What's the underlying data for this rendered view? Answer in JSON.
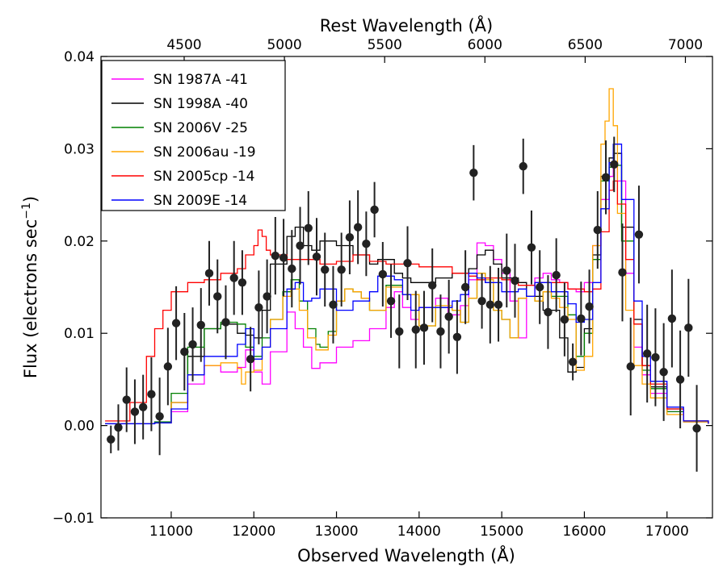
{
  "chart_data": {
    "type": "line",
    "xlabel": "Observed Wavelength (Å)",
    "x2label": "Rest Wavelength (Å)",
    "ylabel": "Flux (electrons sec",
    "ylabel_sup": "−1",
    "ylabel_close": ")",
    "xlim": [
      10150,
      17550
    ],
    "ylim": [
      -0.01,
      0.04
    ],
    "x2lim": [
      4085,
      7135
    ],
    "x_ticks": [
      11000,
      12000,
      13000,
      14000,
      15000,
      16000,
      17000
    ],
    "x_tick_labels": [
      "11000",
      "12000",
      "13000",
      "14000",
      "15000",
      "16000",
      "17000"
    ],
    "x2_ticks": [
      4500,
      5000,
      5500,
      6000,
      6500,
      7000
    ],
    "x2_tick_labels": [
      "4500",
      "5000",
      "5500",
      "6000",
      "6500",
      "7000"
    ],
    "y_ticks": [
      -0.01,
      0.0,
      0.01,
      0.02,
      0.03,
      0.04
    ],
    "y_tick_labels": [
      "−0.01",
      "0.00",
      "0.01",
      "0.02",
      "0.03",
      "0.04"
    ],
    "grid": false,
    "legend_position": "top-left",
    "series": [
      {
        "name": "SN 1987A -41",
        "color": "#ff00ff",
        "x": [
          10200,
          10800,
          11000,
          11200,
          11400,
          11600,
          11800,
          11900,
          12000,
          12100,
          12200,
          12400,
          12500,
          12600,
          12700,
          12800,
          13000,
          13200,
          13400,
          13600,
          13700,
          13800,
          13900,
          14000,
          14200,
          14350,
          14500,
          14600,
          14700,
          14800,
          14900,
          15000,
          15100,
          15200,
          15300,
          15400,
          15500,
          15600,
          15700,
          15800,
          15900,
          16000,
          16100,
          16200,
          16300,
          16350,
          16400,
          16500,
          16600,
          16700,
          16800,
          17000,
          17200,
          17500
        ],
        "y": [
          0.0002,
          0.0003,
          0.0015,
          0.0045,
          0.0065,
          0.0058,
          0.0063,
          0.0082,
          0.0058,
          0.0045,
          0.008,
          0.0123,
          0.0105,
          0.0085,
          0.0062,
          0.0068,
          0.0085,
          0.0092,
          0.0105,
          0.0128,
          0.0145,
          0.0128,
          0.0115,
          0.0128,
          0.0138,
          0.012,
          0.013,
          0.0158,
          0.0198,
          0.0195,
          0.018,
          0.0165,
          0.0135,
          0.0095,
          0.014,
          0.016,
          0.0165,
          0.0158,
          0.0155,
          0.0148,
          0.0145,
          0.0155,
          0.0195,
          0.0245,
          0.027,
          0.028,
          0.0265,
          0.0165,
          0.0085,
          0.0055,
          0.0035,
          0.0015,
          0.0004,
          0.0002
        ]
      },
      {
        "name": "SN 1998A -40",
        "color": "#000000",
        "x": [
          10200,
          10800,
          11000,
          11200,
          11400,
          11600,
          11800,
          11900,
          12000,
          12100,
          12200,
          12400,
          12500,
          12600,
          12700,
          12800,
          13000,
          13200,
          13400,
          13500,
          13700,
          13800,
          13900,
          14000,
          14200,
          14400,
          14600,
          14700,
          14800,
          14900,
          15000,
          15200,
          15300,
          15500,
          15700,
          15800,
          15900,
          16000,
          16100,
          16200,
          16300,
          16350,
          16450,
          16600,
          16700,
          16800,
          17000,
          17200,
          17500
        ],
        "y": [
          0.0002,
          0.0003,
          0.0025,
          0.0075,
          0.0105,
          0.011,
          0.01,
          0.0098,
          0.0095,
          0.0125,
          0.0175,
          0.0205,
          0.0215,
          0.0195,
          0.019,
          0.02,
          0.0195,
          0.0185,
          0.0175,
          0.018,
          0.0165,
          0.016,
          0.0155,
          0.0155,
          0.016,
          0.0165,
          0.017,
          0.0185,
          0.019,
          0.0175,
          0.016,
          0.0155,
          0.014,
          0.0125,
          0.0095,
          0.0058,
          0.0063,
          0.0105,
          0.0185,
          0.027,
          0.029,
          0.0295,
          0.0215,
          0.0115,
          0.0065,
          0.0042,
          0.0018,
          0.0005,
          0.0002
        ]
      },
      {
        "name": "SN 2006V -25",
        "color": "#008000",
        "x": [
          10200,
          10800,
          11000,
          11200,
          11400,
          11600,
          11800,
          11900,
          12000,
          12100,
          12200,
          12350,
          12450,
          12550,
          12650,
          12750,
          12800,
          12900,
          13000,
          13100,
          13200,
          13300,
          13400,
          13600,
          13800,
          14000,
          14200,
          14400,
          14500,
          14600,
          14700,
          14800,
          14900,
          15000,
          15100,
          15200,
          15300,
          15400,
          15500,
          15600,
          15800,
          15900,
          16000,
          16100,
          16200,
          16300,
          16350,
          16450,
          16600,
          16700,
          16800,
          17000,
          17200,
          17500
        ],
        "y": [
          0.0002,
          0.0004,
          0.0035,
          0.0085,
          0.0105,
          0.0112,
          0.011,
          0.0085,
          0.0075,
          0.0095,
          0.0115,
          0.0145,
          0.0158,
          0.0135,
          0.0105,
          0.0088,
          0.0085,
          0.0102,
          0.0135,
          0.0148,
          0.0145,
          0.0138,
          0.0125,
          0.0152,
          0.0142,
          0.0108,
          0.0128,
          0.0125,
          0.0112,
          0.0138,
          0.0165,
          0.0155,
          0.0125,
          0.0115,
          0.0095,
          0.0138,
          0.014,
          0.0135,
          0.0145,
          0.014,
          0.012,
          0.0075,
          0.01,
          0.018,
          0.0265,
          0.028,
          0.0282,
          0.02,
          0.011,
          0.006,
          0.004,
          0.0015,
          0.0004,
          0.0002
        ]
      },
      {
        "name": "SN 2006au -19",
        "color": "#ffa500",
        "x": [
          10200,
          10800,
          11000,
          11200,
          11400,
          11600,
          11800,
          11850,
          11900,
          12000,
          12100,
          12200,
          12350,
          12450,
          12550,
          12650,
          12750,
          12800,
          12900,
          13000,
          13100,
          13200,
          13300,
          13400,
          13600,
          13800,
          14000,
          14200,
          14400,
          14500,
          14600,
          14700,
          14800,
          14900,
          15000,
          15100,
          15200,
          15300,
          15400,
          15500,
          15600,
          15700,
          15800,
          15900,
          16000,
          16100,
          16200,
          16250,
          16300,
          16350,
          16400,
          16500,
          16600,
          16700,
          16800,
          17000,
          17200,
          17500
        ],
        "y": [
          0.0002,
          0.0003,
          0.0025,
          0.0055,
          0.0065,
          0.0068,
          0.0062,
          0.0045,
          0.0058,
          0.006,
          0.0085,
          0.0115,
          0.014,
          0.0148,
          0.0125,
          0.0095,
          0.0082,
          0.0082,
          0.0098,
          0.0135,
          0.0148,
          0.0145,
          0.0138,
          0.0125,
          0.015,
          0.0142,
          0.0108,
          0.013,
          0.0125,
          0.0112,
          0.0138,
          0.0165,
          0.0158,
          0.0125,
          0.0115,
          0.0095,
          0.0138,
          0.014,
          0.0135,
          0.0145,
          0.0138,
          0.0128,
          0.0115,
          0.006,
          0.0075,
          0.0195,
          0.0305,
          0.033,
          0.0365,
          0.0325,
          0.023,
          0.0125,
          0.0065,
          0.0045,
          0.003,
          0.0012,
          0.0004,
          0.0002
        ]
      },
      {
        "name": "SN 2005cp -14",
        "color": "#ff0000",
        "x": [
          10200,
          10500,
          10700,
          10800,
          10900,
          11000,
          11200,
          11400,
          11600,
          11800,
          11900,
          12000,
          12050,
          12100,
          12150,
          12200,
          12400,
          12600,
          12800,
          13000,
          13200,
          13400,
          13600,
          13800,
          14000,
          14200,
          14400,
          14600,
          14700,
          14800,
          15000,
          15200,
          15400,
          15600,
          15800,
          16000,
          16100,
          16200,
          16300,
          16350,
          16400,
          16500,
          16600,
          16700,
          16800,
          17000,
          17200,
          17500
        ],
        "y": [
          0.0005,
          0.0025,
          0.0075,
          0.0105,
          0.0125,
          0.0145,
          0.0155,
          0.0158,
          0.0165,
          0.017,
          0.0185,
          0.0195,
          0.0212,
          0.0205,
          0.019,
          0.0185,
          0.018,
          0.018,
          0.0175,
          0.0178,
          0.0185,
          0.0178,
          0.0175,
          0.0175,
          0.0172,
          0.0172,
          0.0165,
          0.0162,
          0.0158,
          0.016,
          0.0158,
          0.0152,
          0.0155,
          0.0155,
          0.0148,
          0.0145,
          0.0148,
          0.021,
          0.0255,
          0.0265,
          0.024,
          0.018,
          0.011,
          0.0065,
          0.0045,
          0.0018,
          0.0005,
          0.0002
        ]
      },
      {
        "name": "SN 2009E -14",
        "color": "#0000ff",
        "x": [
          10200,
          10800,
          11000,
          11200,
          11400,
          11600,
          11800,
          11900,
          12000,
          12100,
          12200,
          12400,
          12500,
          12600,
          12700,
          12800,
          13000,
          13200,
          13400,
          13500,
          13700,
          13800,
          13900,
          14000,
          14200,
          14400,
          14500,
          14600,
          14700,
          14800,
          15000,
          15200,
          15300,
          15400,
          15600,
          15800,
          15900,
          16000,
          16100,
          16200,
          16300,
          16350,
          16450,
          16600,
          16700,
          16800,
          17000,
          17200,
          17500
        ],
        "y": [
          0.0002,
          0.0003,
          0.0018,
          0.0055,
          0.0075,
          0.0075,
          0.0088,
          0.0105,
          0.0072,
          0.0085,
          0.0105,
          0.0148,
          0.0155,
          0.0135,
          0.0138,
          0.0148,
          0.0125,
          0.0135,
          0.0145,
          0.0162,
          0.0158,
          0.0142,
          0.0125,
          0.0128,
          0.0128,
          0.0135,
          0.0142,
          0.0165,
          0.016,
          0.0155,
          0.0145,
          0.0148,
          0.014,
          0.0155,
          0.0145,
          0.0132,
          0.0112,
          0.0115,
          0.0155,
          0.0235,
          0.0285,
          0.0305,
          0.0245,
          0.0135,
          0.0075,
          0.0048,
          0.002,
          0.0005,
          0.0002
        ]
      }
    ],
    "observed": {
      "name": "observed",
      "color": "#222222",
      "x": [
        10270,
        10360,
        10460,
        10560,
        10660,
        10760,
        10860,
        10960,
        11060,
        11160,
        11260,
        11360,
        11460,
        11560,
        11660,
        11760,
        11860,
        11960,
        12060,
        12160,
        12260,
        12360,
        12460,
        12560,
        12660,
        12760,
        12860,
        12960,
        13060,
        13160,
        13260,
        13360,
        13460,
        13560,
        13660,
        13760,
        13860,
        13960,
        14060,
        14160,
        14260,
        14360,
        14460,
        14560,
        14660,
        14760,
        14860,
        14960,
        15060,
        15160,
        15260,
        15360,
        15460,
        15560,
        15660,
        15760,
        15860,
        15960,
        16060,
        16160,
        16260,
        16360,
        16460,
        16560,
        16660,
        16760,
        16860,
        16960,
        17060,
        17160,
        17260,
        17360
      ],
      "y": [
        -0.0015,
        -0.0002,
        0.0028,
        0.0015,
        0.002,
        0.0034,
        0.001,
        0.0064,
        0.0111,
        0.008,
        0.0088,
        0.0109,
        0.0165,
        0.014,
        0.0112,
        0.016,
        0.0155,
        0.0072,
        0.0128,
        0.014,
        0.0184,
        0.0182,
        0.017,
        0.0195,
        0.0214,
        0.0183,
        0.0169,
        0.0131,
        0.0169,
        0.0204,
        0.0215,
        0.0197,
        0.0234,
        0.0164,
        0.0135,
        0.0102,
        0.0176,
        0.0104,
        0.0106,
        0.0152,
        0.0102,
        0.0118,
        0.0096,
        0.015,
        0.0274,
        0.0135,
        0.0131,
        0.0131,
        0.0168,
        0.0157,
        0.0281,
        0.0193,
        0.015,
        0.0123,
        0.0163,
        0.0115,
        0.0069,
        0.0116,
        0.0129,
        0.0212,
        0.0269,
        0.0283,
        0.0166,
        0.0064,
        0.0207,
        0.0078,
        0.0074,
        0.0058,
        0.0116,
        0.005,
        0.0106,
        -0.0003
      ],
      "err": [
        0.0015,
        0.0025,
        0.0035,
        0.0035,
        0.0035,
        0.004,
        0.0042,
        0.0042,
        0.004,
        0.0042,
        0.004,
        0.004,
        0.0035,
        0.004,
        0.004,
        0.004,
        0.0035,
        0.0035,
        0.004,
        0.004,
        0.0042,
        0.0042,
        0.0042,
        0.0042,
        0.004,
        0.0042,
        0.004,
        0.0042,
        0.004,
        0.004,
        0.004,
        0.0035,
        0.003,
        0.0035,
        0.004,
        0.004,
        0.004,
        0.0042,
        0.004,
        0.004,
        0.004,
        0.004,
        0.004,
        0.004,
        0.003,
        0.003,
        0.0042,
        0.004,
        0.004,
        0.004,
        0.003,
        0.004,
        0.004,
        0.004,
        0.004,
        0.004,
        0.002,
        0.004,
        0.004,
        0.0042,
        0.004,
        0.003,
        0.0053,
        0.0053,
        0.0053,
        0.0053,
        0.0053,
        0.0053,
        0.0053,
        0.0053,
        0.0053,
        0.0047
      ]
    }
  }
}
